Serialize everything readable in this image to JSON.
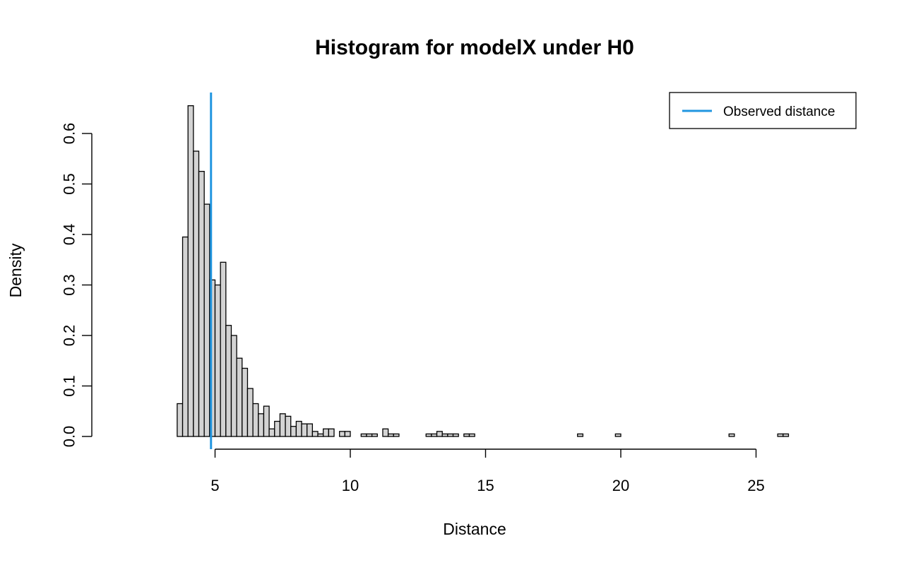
{
  "chart_data": {
    "type": "bar",
    "title": "Histogram for modelX under H0",
    "xlabel": "Distance",
    "ylabel": "Density",
    "xlim": [
      3.6,
      25.6
    ],
    "ylim": [
      0,
      0.6
    ],
    "x_ticks": [
      5,
      10,
      15,
      20,
      25
    ],
    "y_ticks": [
      0.0,
      0.1,
      0.2,
      0.3,
      0.4,
      0.5,
      0.6
    ],
    "y_tick_labels": [
      "0.0",
      "0.1",
      "0.2",
      "0.3",
      "0.4",
      "0.5",
      "0.6"
    ],
    "bin_width": 0.2,
    "bin_start": 3.6,
    "values": [
      0.065,
      0.395,
      0.655,
      0.565,
      0.525,
      0.46,
      0.31,
      0.3,
      0.345,
      0.22,
      0.2,
      0.155,
      0.135,
      0.095,
      0.065,
      0.045,
      0.06,
      0.015,
      0.03,
      0.045,
      0.04,
      0.02,
      0.03,
      0.025,
      0.025,
      0.01,
      0.005,
      0.015,
      0.015,
      0,
      0.01,
      0.01,
      0,
      0,
      0.005,
      0.005,
      0.005,
      0,
      0.015,
      0.005,
      0.005,
      0,
      0,
      0,
      0,
      0,
      0.005,
      0.005,
      0.01,
      0.005,
      0.005,
      0.005,
      0,
      0.005,
      0.005,
      0,
      0,
      0,
      0,
      0,
      0,
      0,
      0,
      0,
      0,
      0,
      0,
      0,
      0,
      0,
      0,
      0,
      0,
      0,
      0.005,
      0,
      0,
      0,
      0,
      0,
      0,
      0.005,
      0,
      0,
      0,
      0,
      0,
      0,
      0,
      0,
      0,
      0,
      0,
      0,
      0,
      0,
      0,
      0,
      0,
      0,
      0,
      0,
      0.005,
      0,
      0,
      0,
      0,
      0,
      0,
      0,
      0,
      0.005,
      0.005
    ],
    "observed_line": {
      "x": 4.85,
      "color": "#2196E0"
    },
    "bar_color": "#d3d3d3",
    "legend": {
      "placement": "top-right",
      "entries": [
        "Observed distance"
      ]
    },
    "grid": false
  }
}
